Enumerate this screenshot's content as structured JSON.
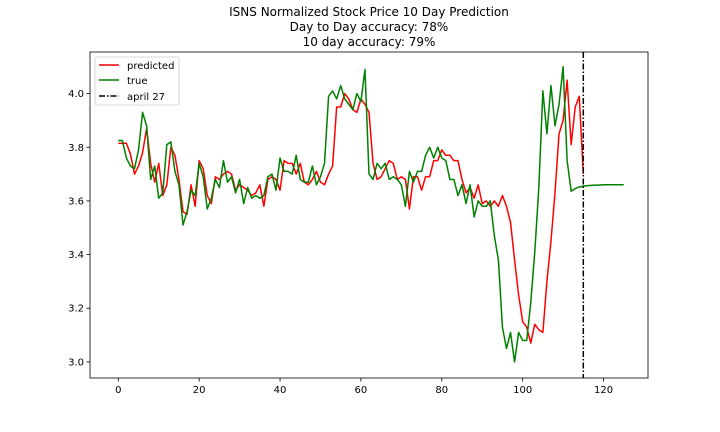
{
  "chart_data": {
    "type": "line",
    "title_lines": [
      "ISNS Normalized Stock Price 10 Day Prediction",
      "Day to Day accuracy: 78%",
      "10 day accuracy: 79%"
    ],
    "xlabel": "",
    "ylabel": "",
    "xlim": [
      -7,
      131
    ],
    "ylim": [
      2.94,
      4.155
    ],
    "xticks": [
      0,
      20,
      40,
      60,
      80,
      100,
      120
    ],
    "xtick_labels": [
      "0",
      "20",
      "40",
      "60",
      "80",
      "100",
      "120"
    ],
    "yticks": [
      3.0,
      3.2,
      3.4,
      3.6,
      3.8,
      4.0
    ],
    "ytick_labels": [
      "3.0",
      "3.2",
      "3.4",
      "3.6",
      "3.8",
      "4.0"
    ],
    "grid": false,
    "legend_position": "top-left",
    "series": [
      {
        "name": "predicted",
        "color": "#ff0000",
        "x": [
          0,
          1,
          2,
          3,
          4,
          5,
          6,
          7,
          8,
          9,
          10,
          11,
          12,
          13,
          14,
          15,
          16,
          17,
          18,
          19,
          20,
          21,
          22,
          23,
          24,
          25,
          26,
          27,
          28,
          29,
          30,
          31,
          32,
          33,
          34,
          35,
          36,
          37,
          38,
          39,
          40,
          41,
          42,
          43,
          44,
          45,
          46,
          47,
          48,
          49,
          50,
          51,
          52,
          53,
          54,
          55,
          56,
          57,
          58,
          59,
          60,
          61,
          62,
          63,
          64,
          65,
          66,
          67,
          68,
          69,
          70,
          71,
          72,
          73,
          74,
          75,
          76,
          77,
          78,
          79,
          80,
          81,
          82,
          83,
          84,
          85,
          86,
          87,
          88,
          89,
          90,
          91,
          92,
          93,
          94,
          95,
          96,
          97,
          98,
          99,
          100,
          101,
          102,
          103,
          104,
          105,
          106,
          107,
          108,
          109,
          110,
          111,
          112,
          113,
          114,
          115
        ],
        "values": [
          3.815,
          3.815,
          3.815,
          3.775,
          3.7,
          3.73,
          3.78,
          3.87,
          3.74,
          3.67,
          3.74,
          3.62,
          3.66,
          3.8,
          3.77,
          3.68,
          3.56,
          3.55,
          3.66,
          3.58,
          3.75,
          3.72,
          3.62,
          3.59,
          3.69,
          3.68,
          3.7,
          3.71,
          3.7,
          3.64,
          3.66,
          3.65,
          3.64,
          3.62,
          3.63,
          3.66,
          3.58,
          3.68,
          3.69,
          3.68,
          3.64,
          3.75,
          3.74,
          3.74,
          3.7,
          3.74,
          3.67,
          3.66,
          3.68,
          3.71,
          3.67,
          3.66,
          3.7,
          3.73,
          3.95,
          3.95,
          4.0,
          3.98,
          3.94,
          3.93,
          3.98,
          3.96,
          3.93,
          3.74,
          3.68,
          3.69,
          3.72,
          3.75,
          3.74,
          3.68,
          3.69,
          3.68,
          3.57,
          3.69,
          3.69,
          3.64,
          3.69,
          3.69,
          3.75,
          3.75,
          3.79,
          3.77,
          3.77,
          3.75,
          3.75,
          3.68,
          3.63,
          3.65,
          3.61,
          3.66,
          3.59,
          3.6,
          3.58,
          3.6,
          3.58,
          3.62,
          3.58,
          3.52,
          3.38,
          3.25,
          3.15,
          3.13,
          3.07,
          3.14,
          3.12,
          3.11,
          3.3,
          3.45,
          3.63,
          3.85,
          3.9,
          4.05,
          3.81,
          3.95,
          3.99,
          3.7
        ]
      },
      {
        "name": "true",
        "color": "#008000",
        "x": [
          0,
          1,
          2,
          3,
          4,
          5,
          6,
          7,
          8,
          9,
          10,
          11,
          12,
          13,
          14,
          15,
          16,
          17,
          18,
          19,
          20,
          21,
          22,
          23,
          24,
          25,
          26,
          27,
          28,
          29,
          30,
          31,
          32,
          33,
          34,
          35,
          36,
          37,
          38,
          39,
          40,
          41,
          42,
          43,
          44,
          45,
          46,
          47,
          48,
          49,
          50,
          51,
          52,
          53,
          54,
          55,
          56,
          57,
          58,
          59,
          60,
          61,
          62,
          63,
          64,
          65,
          66,
          67,
          68,
          69,
          70,
          71,
          72,
          73,
          74,
          75,
          76,
          77,
          78,
          79,
          80,
          81,
          82,
          83,
          84,
          85,
          86,
          87,
          88,
          89,
          90,
          91,
          92,
          93,
          94,
          95,
          96,
          97,
          98,
          99,
          100,
          101,
          102,
          103,
          104,
          105,
          106,
          107,
          108,
          109,
          110,
          111,
          112,
          113,
          114,
          115,
          116,
          117,
          118,
          119,
          120,
          121,
          122,
          123,
          124,
          125
        ],
        "values": [
          3.825,
          3.825,
          3.76,
          3.73,
          3.72,
          3.79,
          3.93,
          3.88,
          3.68,
          3.73,
          3.61,
          3.63,
          3.81,
          3.82,
          3.71,
          3.66,
          3.51,
          3.56,
          3.64,
          3.62,
          3.74,
          3.69,
          3.57,
          3.61,
          3.68,
          3.65,
          3.75,
          3.67,
          3.69,
          3.63,
          3.68,
          3.59,
          3.65,
          3.61,
          3.62,
          3.61,
          3.62,
          3.69,
          3.7,
          3.64,
          3.76,
          3.71,
          3.71,
          3.7,
          3.77,
          3.68,
          3.67,
          3.67,
          3.73,
          3.66,
          3.69,
          3.74,
          3.99,
          4.01,
          3.98,
          4.03,
          3.98,
          3.96,
          3.94,
          4.0,
          3.97,
          4.09,
          3.7,
          3.68,
          3.74,
          3.72,
          3.74,
          3.68,
          3.69,
          3.68,
          3.66,
          3.58,
          3.71,
          3.67,
          3.71,
          3.71,
          3.77,
          3.8,
          3.76,
          3.8,
          3.76,
          3.75,
          3.68,
          3.68,
          3.62,
          3.66,
          3.59,
          3.66,
          3.54,
          3.6,
          3.58,
          3.58,
          3.6,
          3.47,
          3.38,
          3.13,
          3.05,
          3.11,
          3.0,
          3.11,
          3.08,
          3.08,
          3.22,
          3.41,
          3.65,
          4.01,
          3.85,
          4.03,
          3.88,
          3.96,
          4.1,
          3.75,
          3.636,
          3.646,
          3.652,
          3.655,
          3.657,
          3.658,
          3.659,
          3.659,
          3.66,
          3.66,
          3.66,
          3.66,
          3.66,
          3.66
        ]
      }
    ],
    "vline": {
      "name": "april 27",
      "x": 115,
      "color": "#000000",
      "style": "dashdot"
    },
    "legend_entries": [
      "predicted",
      "true",
      "april 27"
    ]
  }
}
